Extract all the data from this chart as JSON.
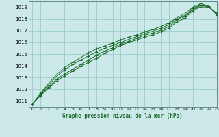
{
  "title": "Graphe pression niveau de la mer (hPa)",
  "xlim": [
    -0.5,
    23
  ],
  "ylim": [
    1010.5,
    1019.5
  ],
  "yticks": [
    1011,
    1012,
    1013,
    1014,
    1015,
    1016,
    1017,
    1018,
    1019
  ],
  "xticks": [
    0,
    1,
    2,
    3,
    4,
    5,
    6,
    7,
    8,
    9,
    10,
    11,
    12,
    13,
    14,
    15,
    16,
    17,
    18,
    19,
    20,
    21,
    22,
    23
  ],
  "bg_color": "#cce8e8",
  "plot_bg_color": "#cce8e8",
  "grid_color": "#99cccc",
  "line_color": "#1a6b2a",
  "lines": [
    [
      1010.75,
      1011.45,
      1012.1,
      1012.7,
      1013.15,
      1013.55,
      1013.95,
      1014.3,
      1014.65,
      1015.05,
      1015.4,
      1015.75,
      1016.0,
      1016.2,
      1016.45,
      1016.65,
      1016.9,
      1017.2,
      1017.75,
      1018.05,
      1018.7,
      1019.05,
      1019.0,
      1018.5
    ],
    [
      1010.75,
      1011.5,
      1012.2,
      1012.85,
      1013.3,
      1013.7,
      1014.1,
      1014.5,
      1014.9,
      1015.25,
      1015.55,
      1015.85,
      1016.1,
      1016.35,
      1016.6,
      1016.8,
      1017.05,
      1017.35,
      1017.9,
      1018.2,
      1018.8,
      1019.15,
      1019.05,
      1018.45
    ],
    [
      1010.75,
      1011.6,
      1012.35,
      1013.1,
      1013.65,
      1014.1,
      1014.5,
      1014.85,
      1015.2,
      1015.5,
      1015.75,
      1016.0,
      1016.25,
      1016.5,
      1016.75,
      1016.95,
      1017.2,
      1017.5,
      1018.0,
      1018.3,
      1018.9,
      1019.2,
      1019.05,
      1018.4
    ],
    [
      1010.75,
      1011.65,
      1012.5,
      1013.25,
      1013.85,
      1014.3,
      1014.7,
      1015.1,
      1015.45,
      1015.7,
      1015.95,
      1016.2,
      1016.45,
      1016.65,
      1016.9,
      1017.1,
      1017.35,
      1017.65,
      1018.1,
      1018.45,
      1019.0,
      1019.3,
      1019.1,
      1018.35
    ]
  ]
}
